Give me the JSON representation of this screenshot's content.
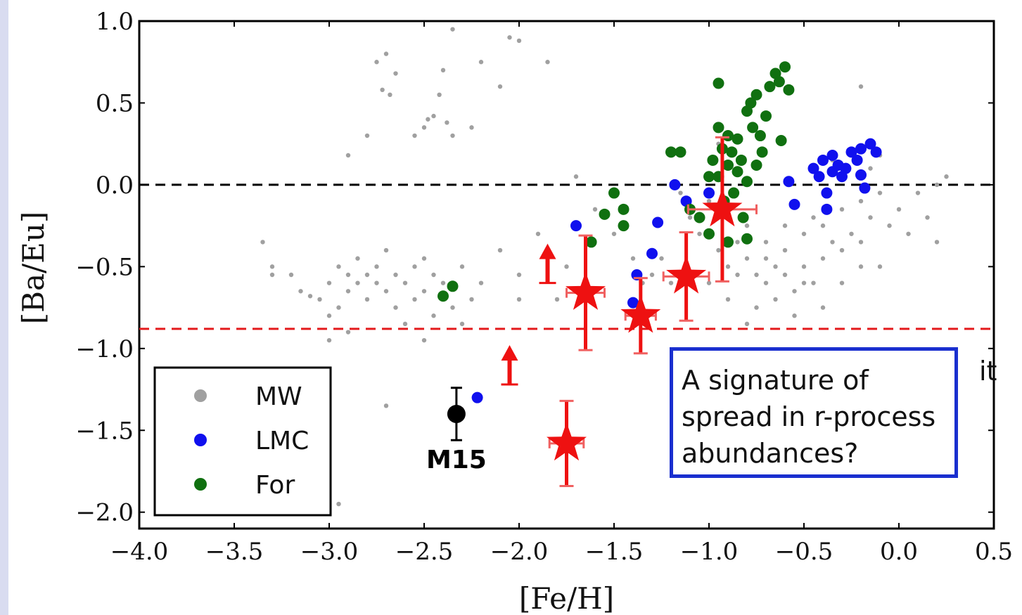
{
  "chart_data": {
    "type": "scatter",
    "xlabel": "[Fe/H]",
    "ylabel": "[Ba/Eu]",
    "xlim": [
      -4.0,
      0.5
    ],
    "ylim": [
      -2.1,
      1.0
    ],
    "x_ticks": [
      "−4.0",
      "−3.5",
      "−3.0",
      "−2.5",
      "−2.0",
      "−1.5",
      "−1.0",
      "−0.5",
      "0.0",
      "0.5"
    ],
    "y_ticks": [
      "1.0",
      "0.5",
      "0.0",
      "−0.5",
      "−1.0",
      "−1.5",
      "−2.0"
    ],
    "grid": false,
    "legend_position": "bottom-left",
    "reference_lines": [
      {
        "y": 0.0,
        "color": "#000000",
        "style": "dashed"
      },
      {
        "y": -0.88,
        "color": "#e31a1c",
        "style": "dashed"
      }
    ],
    "series": [
      {
        "name": "MW",
        "color": "#a0a0a0",
        "marker": "small-dot",
        "points": [
          [
            -3.35,
            -0.35
          ],
          [
            -3.3,
            -0.5
          ],
          [
            -3.3,
            -0.55
          ],
          [
            -3.2,
            -0.55
          ],
          [
            -3.15,
            -0.65
          ],
          [
            -3.1,
            -0.68
          ],
          [
            -3.05,
            -0.7
          ],
          [
            -3.0,
            -0.6
          ],
          [
            -3.0,
            -0.8
          ],
          [
            -2.95,
            -0.75
          ],
          [
            -2.95,
            -0.5
          ],
          [
            -2.9,
            -0.55
          ],
          [
            -2.9,
            -0.65
          ],
          [
            -2.85,
            -0.45
          ],
          [
            -2.85,
            -0.6
          ],
          [
            -2.8,
            -0.55
          ],
          [
            -2.8,
            -0.7
          ],
          [
            -2.75,
            -0.6
          ],
          [
            -2.75,
            -0.5
          ],
          [
            -2.7,
            -0.65
          ],
          [
            -2.7,
            -0.4
          ],
          [
            -2.65,
            -0.55
          ],
          [
            -2.65,
            -0.75
          ],
          [
            -2.6,
            -0.6
          ],
          [
            -2.6,
            -0.85
          ],
          [
            -2.55,
            -0.5
          ],
          [
            -2.55,
            -0.7
          ],
          [
            -2.5,
            -0.45
          ],
          [
            -2.5,
            -0.65
          ],
          [
            -2.45,
            -0.55
          ],
          [
            -2.45,
            -0.8
          ],
          [
            -2.4,
            -0.6
          ],
          [
            -2.35,
            -0.75
          ],
          [
            -2.3,
            -0.5
          ],
          [
            -2.3,
            -0.85
          ],
          [
            -2.25,
            -0.7
          ],
          [
            -2.2,
            -0.6
          ],
          [
            -2.1,
            -0.4
          ],
          [
            -2.0,
            -0.7
          ],
          [
            -2.0,
            -0.55
          ],
          [
            -1.9,
            -0.3
          ],
          [
            -1.8,
            -0.7
          ],
          [
            -1.75,
            -0.5
          ],
          [
            -2.9,
            0.18
          ],
          [
            -2.8,
            0.3
          ],
          [
            -2.75,
            0.75
          ],
          [
            -2.72,
            0.58
          ],
          [
            -2.7,
            0.8
          ],
          [
            -2.68,
            0.55
          ],
          [
            -2.65,
            0.68
          ],
          [
            -2.55,
            0.3
          ],
          [
            -2.5,
            0.35
          ],
          [
            -2.48,
            0.4
          ],
          [
            -2.45,
            0.42
          ],
          [
            -2.42,
            0.55
          ],
          [
            -2.4,
            0.7
          ],
          [
            -2.38,
            0.38
          ],
          [
            -2.35,
            0.3
          ],
          [
            -2.25,
            0.35
          ],
          [
            -2.35,
            0.95
          ],
          [
            -2.2,
            0.75
          ],
          [
            -2.1,
            0.6
          ],
          [
            -2.05,
            0.9
          ],
          [
            -2.0,
            0.88
          ],
          [
            -1.85,
            0.75
          ],
          [
            -3.0,
            -0.95
          ],
          [
            -2.9,
            -0.9
          ],
          [
            -2.5,
            -0.95
          ],
          [
            -2.7,
            -1.35
          ],
          [
            -2.95,
            -1.95
          ],
          [
            -1.7,
            0.05
          ],
          [
            -1.6,
            -0.15
          ],
          [
            -1.5,
            -0.3
          ],
          [
            -1.4,
            -0.45
          ],
          [
            -1.3,
            -0.55
          ],
          [
            -1.2,
            -0.6
          ],
          [
            -1.1,
            -0.2
          ],
          [
            -1.0,
            -0.1
          ],
          [
            -0.95,
            -0.4
          ],
          [
            -0.9,
            -0.5
          ],
          [
            -0.85,
            -0.35
          ],
          [
            -0.8,
            -0.45
          ],
          [
            -0.75,
            -0.55
          ],
          [
            -0.7,
            -0.6
          ],
          [
            -0.65,
            -0.5
          ],
          [
            -0.6,
            -0.4
          ],
          [
            -0.55,
            -0.65
          ],
          [
            -0.5,
            -0.3
          ],
          [
            -0.45,
            -0.2
          ],
          [
            -0.4,
            -0.25
          ],
          [
            -0.35,
            -0.35
          ],
          [
            -0.3,
            -0.15
          ],
          [
            -0.25,
            -0.3
          ],
          [
            -0.2,
            -0.1
          ],
          [
            -0.15,
            -0.2
          ],
          [
            -0.1,
            -0.05
          ],
          [
            -0.05,
            -0.25
          ],
          [
            0.0,
            -0.15
          ],
          [
            0.05,
            -0.3
          ],
          [
            0.1,
            -0.05
          ],
          [
            0.15,
            -0.2
          ],
          [
            0.2,
            0.0
          ],
          [
            -0.8,
            -0.25
          ],
          [
            -0.7,
            -0.35
          ],
          [
            -0.6,
            -0.25
          ],
          [
            -0.5,
            -0.5
          ],
          [
            -0.4,
            -0.45
          ],
          [
            -0.3,
            -0.4
          ],
          [
            -0.2,
            -0.35
          ],
          [
            -1.05,
            -0.3
          ],
          [
            -1.15,
            -0.05
          ],
          [
            -0.95,
            0.25
          ],
          [
            -0.85,
            0.1
          ],
          [
            -0.75,
            -0.75
          ],
          [
            -0.65,
            -0.7
          ],
          [
            -0.55,
            -0.8
          ],
          [
            -0.45,
            -0.6
          ],
          [
            -1.25,
            -0.45
          ],
          [
            -1.35,
            -0.6
          ],
          [
            -0.35,
            0.15
          ],
          [
            -0.25,
            0.2
          ],
          [
            -0.15,
            0.1
          ],
          [
            -0.1,
            0.18
          ],
          [
            -0.2,
            0.6
          ],
          [
            -0.1,
            -0.5
          ],
          [
            0.25,
            0.05
          ],
          [
            0.2,
            -0.35
          ],
          [
            -1.0,
            -0.6
          ],
          [
            -0.9,
            -0.7
          ],
          [
            -0.8,
            -0.85
          ],
          [
            -0.85,
            -0.55
          ],
          [
            -0.7,
            -0.45
          ],
          [
            -0.6,
            -0.55
          ],
          [
            -0.5,
            -0.6
          ],
          [
            -0.4,
            -0.75
          ],
          [
            -0.3,
            -0.6
          ],
          [
            -0.2,
            -0.5
          ]
        ]
      },
      {
        "name": "LMC",
        "color": "#1010ee",
        "marker": "dot",
        "points": [
          [
            -2.22,
            -1.3
          ],
          [
            -1.7,
            -0.25
          ],
          [
            -1.4,
            -0.72
          ],
          [
            -1.38,
            -0.55
          ],
          [
            -1.3,
            -0.42
          ],
          [
            -1.27,
            -0.23
          ],
          [
            -1.18,
            0.0
          ],
          [
            -1.12,
            -0.1
          ],
          [
            -1.0,
            -0.05
          ],
          [
            -0.58,
            0.02
          ],
          [
            -0.55,
            -0.12
          ],
          [
            -0.45,
            0.1
          ],
          [
            -0.42,
            0.05
          ],
          [
            -0.4,
            0.15
          ],
          [
            -0.38,
            -0.05
          ],
          [
            -0.35,
            0.18
          ],
          [
            -0.35,
            0.08
          ],
          [
            -0.32,
            0.12
          ],
          [
            -0.3,
            0.05
          ],
          [
            -0.28,
            0.1
          ],
          [
            -0.25,
            0.2
          ],
          [
            -0.22,
            0.15
          ],
          [
            -0.2,
            0.22
          ],
          [
            -0.18,
            -0.02
          ],
          [
            -0.15,
            0.25
          ],
          [
            -0.12,
            0.2
          ],
          [
            -0.38,
            -0.15
          ],
          [
            -0.2,
            0.06
          ]
        ]
      },
      {
        "name": "For",
        "color": "#107010",
        "marker": "dot",
        "points": [
          [
            -2.4,
            -0.68
          ],
          [
            -2.35,
            -0.62
          ],
          [
            -1.62,
            -0.35
          ],
          [
            -1.55,
            -0.18
          ],
          [
            -1.5,
            -0.05
          ],
          [
            -1.45,
            -0.25
          ],
          [
            -1.45,
            -0.15
          ],
          [
            -1.2,
            0.2
          ],
          [
            -1.15,
            0.2
          ],
          [
            -1.1,
            -0.15
          ],
          [
            -1.05,
            -0.2
          ],
          [
            -1.0,
            0.05
          ],
          [
            -0.98,
            0.15
          ],
          [
            -0.95,
            0.62
          ],
          [
            -0.95,
            0.35
          ],
          [
            -0.95,
            0.05
          ],
          [
            -0.93,
            0.22
          ],
          [
            -0.92,
            -0.1
          ],
          [
            -0.9,
            0.3
          ],
          [
            -0.9,
            0.12
          ],
          [
            -0.88,
            0.2
          ],
          [
            -0.87,
            -0.05
          ],
          [
            -0.85,
            0.28
          ],
          [
            -0.85,
            0.08
          ],
          [
            -0.83,
            0.15
          ],
          [
            -0.82,
            -0.2
          ],
          [
            -0.8,
            0.45
          ],
          [
            -0.8,
            0.02
          ],
          [
            -0.78,
            0.5
          ],
          [
            -0.77,
            0.35
          ],
          [
            -0.75,
            0.55
          ],
          [
            -0.73,
            0.3
          ],
          [
            -0.72,
            0.2
          ],
          [
            -0.7,
            0.42
          ],
          [
            -0.68,
            0.6
          ],
          [
            -0.65,
            0.68
          ],
          [
            -0.63,
            0.63
          ],
          [
            -0.6,
            0.72
          ],
          [
            -0.58,
            0.58
          ],
          [
            -0.62,
            0.27
          ],
          [
            -0.75,
            0.12
          ],
          [
            -0.8,
            -0.33
          ],
          [
            -1.0,
            -0.3
          ],
          [
            -0.9,
            -0.35
          ]
        ]
      }
    ],
    "stars": {
      "name": "stars",
      "color": "#ee1111",
      "points": [
        {
          "x": -1.65,
          "y": -0.66,
          "xerr": 0.1,
          "yerr": 0.35
        },
        {
          "x": -1.36,
          "y": -0.8,
          "xerr": 0.08,
          "yerr": 0.23
        },
        {
          "x": -1.12,
          "y": -0.56,
          "xerr": 0.12,
          "yerr": 0.27
        },
        {
          "x": -0.93,
          "y": -0.15,
          "xerr": 0.18,
          "yerr": 0.44
        },
        {
          "x": -1.75,
          "y": -1.58,
          "xerr": 0.09,
          "yerr": 0.26
        }
      ],
      "lower_limits": [
        {
          "x": -1.85,
          "y": -0.6
        },
        {
          "x": -2.05,
          "y": -1.22
        }
      ]
    },
    "m15": {
      "label": "M15",
      "x": -2.33,
      "y": -1.4,
      "yerr": 0.16,
      "color": "#000000"
    },
    "legend": [
      {
        "label": "MW",
        "color": "#a0a0a0"
      },
      {
        "label": "LMC",
        "color": "#1010ee"
      },
      {
        "label": "For",
        "color": "#107010"
      }
    ]
  },
  "callout": {
    "lines": [
      "A signature of",
      "spread in r-process",
      "abundances?"
    ],
    "border_color": "#1a2fcf"
  },
  "clipped_text": "it"
}
